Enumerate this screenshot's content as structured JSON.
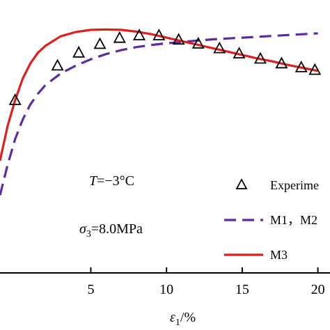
{
  "chart_data": {
    "type": "line",
    "xlabel": "ε1/%",
    "ylabel": "",
    "xlim": [
      -1.0,
      20.8
    ],
    "ylim": [
      0,
      1
    ],
    "y_axis_tick_labels": "not visible",
    "xticks": [
      5,
      10,
      15,
      20
    ],
    "annotations": {
      "temperature": {
        "symbol": "T",
        "value": "=−3°C"
      },
      "confining_pressure": {
        "symbol": "σ",
        "subscript": "3",
        "value": "=8.0MPa"
      }
    },
    "legend": {
      "placement": "bottom-right",
      "entries": [
        {
          "label": "Experime",
          "marker": "triangle-open"
        },
        {
          "label": "M1，M2",
          "style": "dashed",
          "color": "#5b2d9e"
        },
        {
          "label": "M3",
          "style": "solid",
          "color": "#e01e1e"
        }
      ]
    },
    "series": [
      {
        "name": "Experime",
        "kind": "scatter",
        "marker": "triangle-open",
        "color": "#000000",
        "x": [
          0.0,
          2.8,
          4.2,
          5.6,
          6.9,
          8.2,
          9.5,
          10.8,
          12.1,
          13.5,
          14.8,
          16.2,
          17.6,
          18.9,
          19.8
        ],
        "y": [
          0.8,
          0.88,
          0.91,
          0.93,
          0.944,
          0.95,
          0.95,
          0.94,
          0.931,
          0.92,
          0.908,
          0.896,
          0.885,
          0.876,
          0.87
        ]
      },
      {
        "name": "M1，M2",
        "kind": "line",
        "style": "dashed",
        "color": "#5b2d9e",
        "x": [
          -1.0,
          -0.5,
          0.0,
          0.5,
          1.0,
          1.5,
          2.0,
          3.0,
          4.0,
          5.0,
          6.0,
          7.0,
          8.0,
          9.0,
          10.0,
          11.0,
          12.0,
          13.0,
          14.0,
          15.0,
          16.0,
          17.0,
          18.0,
          19.0,
          20.0
        ],
        "y": [
          0.58,
          0.65,
          0.71,
          0.755,
          0.79,
          0.815,
          0.835,
          0.862,
          0.88,
          0.895,
          0.907,
          0.916,
          0.923,
          0.928,
          0.932,
          0.935,
          0.938,
          0.941,
          0.943,
          0.945,
          0.947,
          0.949,
          0.951,
          0.953,
          0.955
        ]
      },
      {
        "name": "M3",
        "kind": "line",
        "style": "solid",
        "color": "#e01e1e",
        "x": [
          -1.0,
          -0.5,
          0.0,
          0.5,
          1.0,
          1.5,
          2.0,
          3.0,
          4.0,
          5.0,
          6.0,
          7.0,
          8.0,
          9.0,
          10.0,
          11.0,
          12.0,
          13.0,
          14.0,
          15.0,
          16.0,
          17.0,
          18.0,
          19.0,
          20.0
        ],
        "y": [
          0.66,
          0.74,
          0.8,
          0.85,
          0.885,
          0.91,
          0.926,
          0.948,
          0.958,
          0.963,
          0.964,
          0.963,
          0.959,
          0.953,
          0.945,
          0.937,
          0.929,
          0.921,
          0.913,
          0.905,
          0.897,
          0.89,
          0.882,
          0.875,
          0.868
        ]
      }
    ]
  }
}
